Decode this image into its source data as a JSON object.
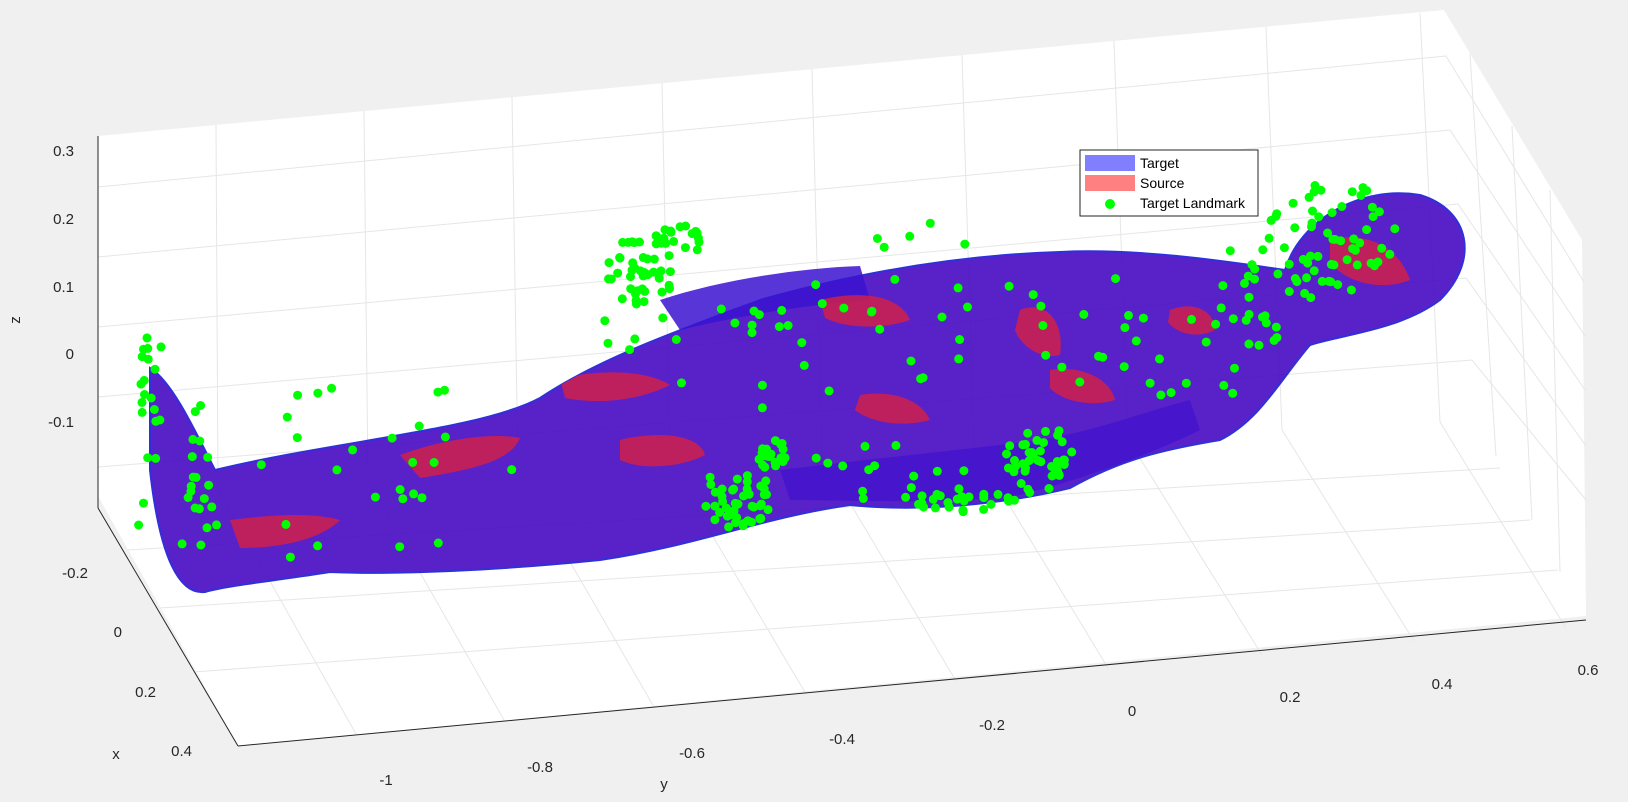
{
  "chart_data": {
    "type": "3d-surface-scatter",
    "title": "",
    "xlabel": "x",
    "ylabel": "y",
    "zlabel": "z",
    "grid": true,
    "legend_position": "top-right",
    "x_ticks": [
      "-0.2",
      "0",
      "0.2",
      "0.4"
    ],
    "y_ticks": [
      "-1",
      "-0.8",
      "-0.6",
      "-0.4",
      "-0.2",
      "0",
      "0.2",
      "0.4",
      "0.6"
    ],
    "z_ticks": [
      "0.3",
      "0.2",
      "0.1",
      "0",
      "-0.1"
    ],
    "series": [
      {
        "name": "Target",
        "kind": "surface",
        "color": "#8080ff"
      },
      {
        "name": "Source",
        "kind": "surface",
        "color": "#ff8080"
      },
      {
        "name": "Target Landmark",
        "kind": "scatter",
        "color": "#00ff00"
      }
    ]
  }
}
